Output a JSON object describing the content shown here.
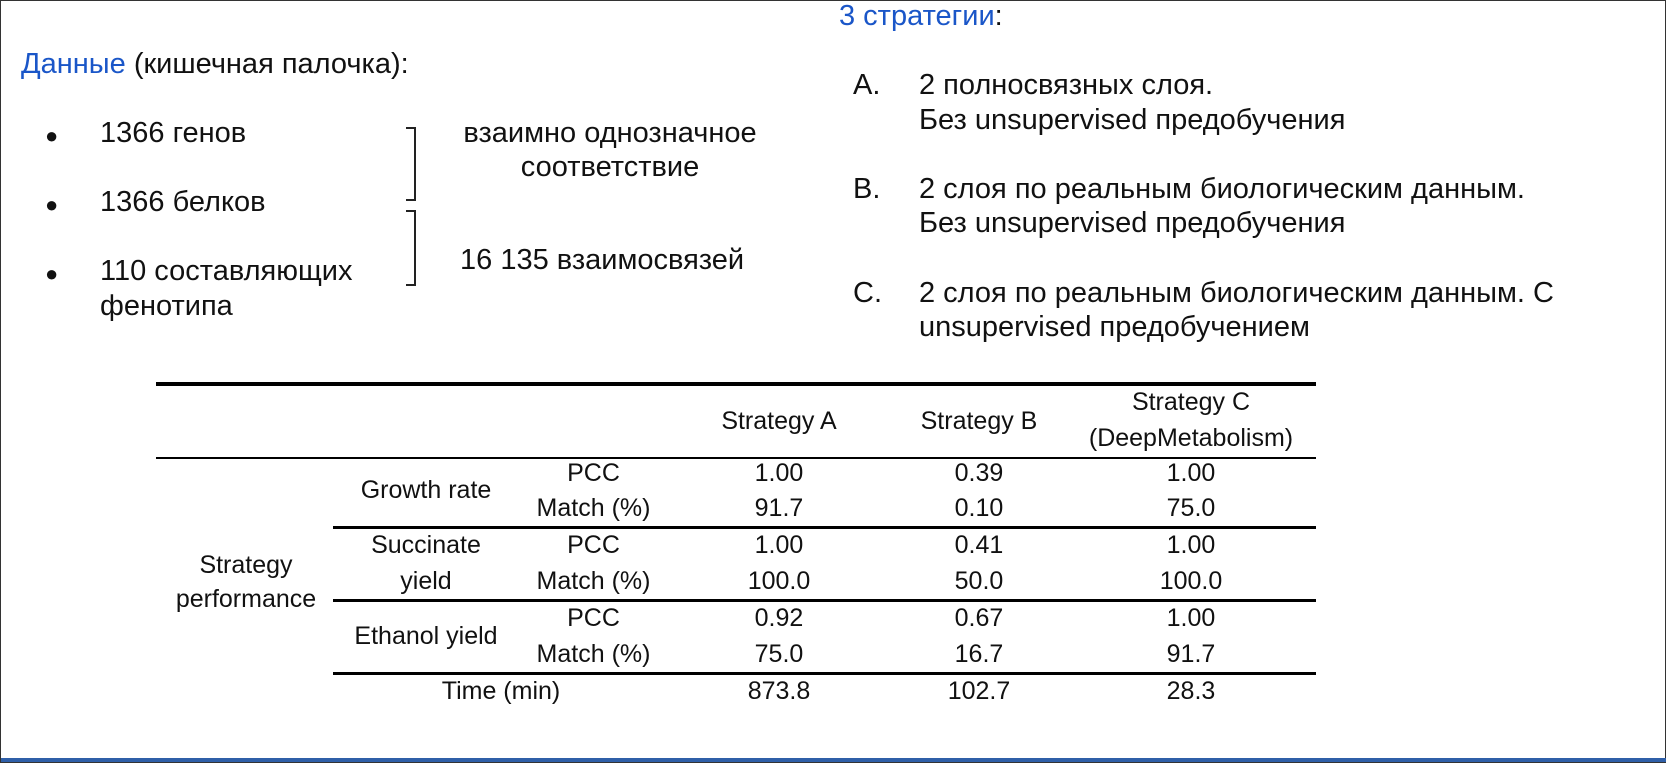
{
  "left": {
    "data_word": "Данные",
    "data_rest": " (кишечная палочка):",
    "bullets": [
      {
        "line1": "1366 генов"
      },
      {
        "line1": "1366 белков"
      },
      {
        "line1": "110 составляющих",
        "line2": "фенотипа"
      }
    ],
    "brace1_line1": "взаимно однозначное",
    "brace1_line2": "соответствие",
    "brace2_text": "16 135 взаимосвязей"
  },
  "right": {
    "title_word": "3 стратегии",
    "title_rest": ":",
    "items": [
      {
        "letter": "A.",
        "line1": "2 полносвязных слоя.",
        "line2": "Без unsupervised предобучения"
      },
      {
        "letter": "B.",
        "line1": "2 слоя по реальным биологическим данным.",
        "line2": "Без unsupervised предобучения"
      },
      {
        "letter": "C.",
        "line1": "2 слоя по реальным биологическим данным. С",
        "line2": "unsupervised предобучением"
      }
    ]
  },
  "table": {
    "headers": {
      "a": "Strategy A",
      "b": "Strategy B",
      "c_line1": "Strategy C",
      "c_line2": "(DeepMetabolism)"
    },
    "row_group_line1": "Strategy",
    "row_group_line2": "performance",
    "groups": [
      {
        "label_line1": "Growth rate",
        "label_line2": "",
        "rows": [
          {
            "metric": "PCC",
            "a": "1.00",
            "b": "0.39",
            "c": "1.00"
          },
          {
            "metric": "Match (%)",
            "a": "91.7",
            "b": "0.10",
            "c": "75.0"
          }
        ]
      },
      {
        "label_line1": "Succinate",
        "label_line2": "yield",
        "rows": [
          {
            "metric": "PCC",
            "a": "1.00",
            "b": "0.41",
            "c": "1.00"
          },
          {
            "metric": "Match (%)",
            "a": "100.0",
            "b": "50.0",
            "c": "100.0"
          }
        ]
      },
      {
        "label_line1": "Ethanol yield",
        "label_line2": "",
        "rows": [
          {
            "metric": "PCC",
            "a": "0.92",
            "b": "0.67",
            "c": "1.00"
          },
          {
            "metric": "Match (%)",
            "a": "75.0",
            "b": "16.7",
            "c": "91.7"
          }
        ]
      }
    ],
    "time_row": {
      "label": "Time (min)",
      "a": "873.8",
      "b": "102.7",
      "c": "28.3"
    }
  }
}
